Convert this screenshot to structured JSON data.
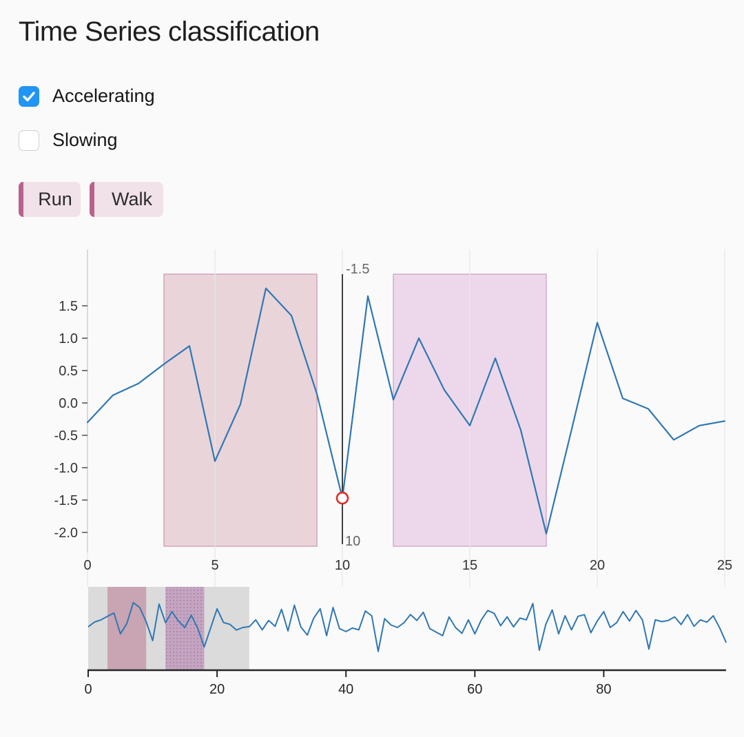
{
  "header": {
    "title": "Time Series classification"
  },
  "controls": {
    "checkboxes": [
      {
        "label": "Accelerating",
        "checked": true
      },
      {
        "label": "Slowing",
        "checked": false
      }
    ],
    "buttons": [
      {
        "label": "Run"
      },
      {
        "label": "Walk"
      }
    ]
  },
  "colors": {
    "accent_blue": "#2095f3",
    "line_blue": "#2f77b3",
    "button_bg": "#f1e2e9",
    "button_stripe": "#b8618c",
    "cursor_gray": "#3f4041",
    "marker_red": "#e02b2b",
    "selection_gray": "#dbdbdb",
    "grid": "#e7e7e7",
    "axis_light": "#cbcbcb",
    "axis_dark": "#262626"
  },
  "chart_data": [
    {
      "id": "main",
      "type": "line",
      "title": "",
      "xlabel": "",
      "ylabel": "",
      "x_ticks": [
        0,
        5,
        10,
        15,
        20,
        25
      ],
      "y_ticks": [
        1.5,
        1.0,
        0.5,
        0.0,
        -0.5,
        -1.0,
        -1.5,
        -2.0
      ],
      "xlim": [
        0,
        25.7
      ],
      "ylim": [
        -2.35,
        2.4
      ],
      "grid": "vertical-only",
      "legend": "none",
      "x": [
        0,
        1,
        2,
        3,
        4,
        5,
        6,
        7,
        8,
        9,
        10,
        11,
        12,
        13,
        14,
        15,
        16,
        17,
        18,
        19,
        20,
        21,
        22,
        23,
        24,
        25
      ],
      "values": [
        -0.3,
        0.12,
        0.3,
        0.6,
        0.88,
        -0.9,
        -0.02,
        1.77,
        1.35,
        0.14,
        -1.47,
        1.65,
        0.05,
        1.0,
        0.2,
        -0.35,
        0.69,
        -0.42,
        -2.02,
        -0.4,
        1.24,
        0.07,
        -0.09,
        -0.57,
        -0.35,
        -0.28
      ],
      "regions": [
        {
          "label": "Run",
          "x_start": 3,
          "x_end": 9,
          "fill": "#e9d4da",
          "border": "#cfa0b6"
        },
        {
          "label": "Walk",
          "x_start": 12,
          "x_end": 18,
          "fill": "#ecd8ea",
          "border": "#d2a6c8"
        }
      ],
      "cursor": {
        "x": 10,
        "value_label": "-1.5",
        "x_label": "10",
        "marker_value": -1.47
      }
    },
    {
      "id": "overview",
      "type": "line",
      "x_ticks": [
        0,
        20,
        40,
        60,
        80
      ],
      "xlim": [
        0,
        99
      ],
      "grid": "none",
      "selection": {
        "x_start": 0,
        "x_end": 25
      },
      "regions": [
        {
          "label": "Run",
          "x_start": 3,
          "x_end": 9,
          "fill": "#c9a4b3",
          "pattern": "solid"
        },
        {
          "label": "Walk",
          "x_start": 12,
          "x_end": 18,
          "fill": "#c4a5c1",
          "pattern": "dots"
        }
      ],
      "values": [
        -0.3,
        0.12,
        0.3,
        0.6,
        0.88,
        -0.9,
        -0.02,
        1.77,
        1.35,
        0.14,
        -1.47,
        1.65,
        0.05,
        1.0,
        0.2,
        -0.35,
        0.69,
        -0.42,
        -2.02,
        -0.4,
        1.24,
        0.07,
        -0.09,
        -0.57,
        -0.35,
        -0.28,
        0.3,
        -0.55,
        0.25,
        -0.25,
        1.2,
        -0.65,
        1.55,
        -0.3,
        -1.0,
        0.45,
        1.25,
        -1.05,
        1.35,
        -0.45,
        -0.7,
        -0.4,
        -0.55,
        1.05,
        0.65,
        -2.4,
        0.4,
        -0.15,
        -0.35,
        0.05,
        0.75,
        0.25,
        0.95,
        -0.45,
        -0.75,
        -1.05,
        0.55,
        -0.35,
        -0.85,
        0.3,
        -0.9,
        0.3,
        1.1,
        0.85,
        -0.2,
        0.55,
        -0.3,
        0.45,
        0.3,
        1.7,
        -2.3,
        -0.1,
        1.15,
        -0.9,
        0.65,
        -0.55,
        0.6,
        0.75,
        -0.8,
        0.2,
        1.0,
        -0.35,
        0.05,
        1.0,
        0.2,
        1.1,
        0.3,
        -2.2,
        0.3,
        0.15,
        0.25,
        0.55,
        -0.1,
        0.75,
        -0.25,
        0.3,
        0.1,
        0.65,
        -0.4,
        -1.65
      ]
    }
  ]
}
